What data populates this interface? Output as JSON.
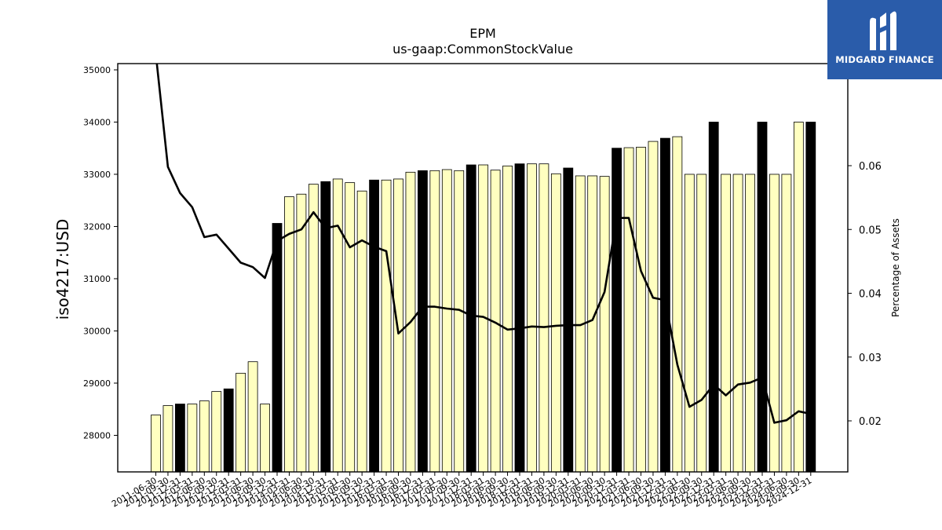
{
  "chart_data": {
    "type": "bar",
    "title": "EPM",
    "subtitle": "us-gaap:CommonStockValue",
    "ylabel": "iso4217:USD",
    "y2label": "Percentage of Assets",
    "ylim": [
      27300,
      35120
    ],
    "y2lim": [
      0.012,
      0.076
    ],
    "yticks": [
      28000,
      29000,
      30000,
      31000,
      32000,
      33000,
      34000,
      35000
    ],
    "y2ticks": [
      0.02,
      0.03,
      0.04,
      0.05,
      0.06
    ],
    "categories": [
      "2011-06-30",
      "2011-09-30",
      "2011-12-31",
      "2012-03-31",
      "2012-06-30",
      "2012-09-30",
      "2012-12-31",
      "2013-03-31",
      "2013-06-30",
      "2013-09-30",
      "2013-12-31",
      "2014-03-31",
      "2014-06-30",
      "2014-09-30",
      "2014-12-31",
      "2015-03-31",
      "2015-06-30",
      "2015-09-30",
      "2015-12-31",
      "2016-03-31",
      "2016-06-30",
      "2016-09-30",
      "2016-12-31",
      "2017-03-31",
      "2017-06-30",
      "2017-09-30",
      "2017-12-31",
      "2018-03-31",
      "2018-06-30",
      "2018-09-30",
      "2018-12-31",
      "2019-03-31",
      "2019-06-30",
      "2019-09-30",
      "2019-12-31",
      "2020-03-31",
      "2020-06-30",
      "2020-09-30",
      "2020-12-31",
      "2021-03-31",
      "2021-06-30",
      "2021-09-30",
      "2021-12-31",
      "2022-03-31",
      "2022-06-30",
      "2022-09-30",
      "2022-12-31",
      "2023-03-31",
      "2023-06-30",
      "2023-09-30",
      "2023-12-31",
      "2024-03-31",
      "2024-06-30",
      "2024-09-30",
      "2024-12-31"
    ],
    "series": [
      {
        "type": "bar",
        "values": [
          28390,
          28570,
          28600,
          28600,
          28660,
          28840,
          28890,
          29190,
          29410,
          28600,
          32060,
          32570,
          32620,
          32810,
          32860,
          32910,
          32840,
          32680,
          32890,
          32890,
          32910,
          33040,
          33070,
          33070,
          33090,
          33070,
          33180,
          33180,
          33080,
          33160,
          33200,
          33200,
          33200,
          33010,
          33120,
          32970,
          32970,
          32960,
          33500,
          33510,
          33520,
          33630,
          33690,
          33720,
          33000,
          33000,
          34000,
          33000,
          33000,
          33000,
          34000,
          33000,
          33000,
          34000,
          34000
        ],
        "highlight": [
          false,
          false,
          true,
          false,
          false,
          false,
          true,
          false,
          false,
          false,
          true,
          false,
          false,
          false,
          true,
          false,
          false,
          false,
          true,
          false,
          false,
          false,
          true,
          false,
          false,
          false,
          true,
          false,
          false,
          false,
          true,
          false,
          false,
          false,
          true,
          false,
          false,
          false,
          true,
          false,
          false,
          false,
          true,
          false,
          false,
          false,
          true,
          false,
          false,
          false,
          true,
          false,
          false,
          false,
          true
        ]
      },
      {
        "type": "line",
        "axis": "right",
        "values": [
          0.0775,
          0.0598,
          0.0557,
          0.0535,
          0.0488,
          0.0492,
          0.047,
          0.0448,
          0.0441,
          0.0424,
          0.0482,
          0.0493,
          0.05,
          0.0527,
          0.0502,
          0.0506,
          0.0472,
          0.0483,
          0.0473,
          0.0466,
          0.0337,
          0.0355,
          0.0379,
          0.0379,
          0.0376,
          0.0374,
          0.0365,
          0.0363,
          0.0354,
          0.0343,
          0.0345,
          0.0348,
          0.0347,
          0.0349,
          0.035,
          0.035,
          0.0358,
          0.0402,
          0.0518,
          0.0518,
          0.0435,
          0.0393,
          0.0389,
          0.0288,
          0.0222,
          0.0233,
          0.0257,
          0.024,
          0.0257,
          0.026,
          0.0268,
          0.0197,
          0.0201,
          0.0215,
          0.0211
        ]
      }
    ],
    "colors": {
      "bar": "#ffffc0",
      "bar_highlight": "#000000",
      "line": "#000000"
    }
  },
  "logo": {
    "name": "MIDGARD FINANCE",
    "bg": "#2a5caa"
  }
}
